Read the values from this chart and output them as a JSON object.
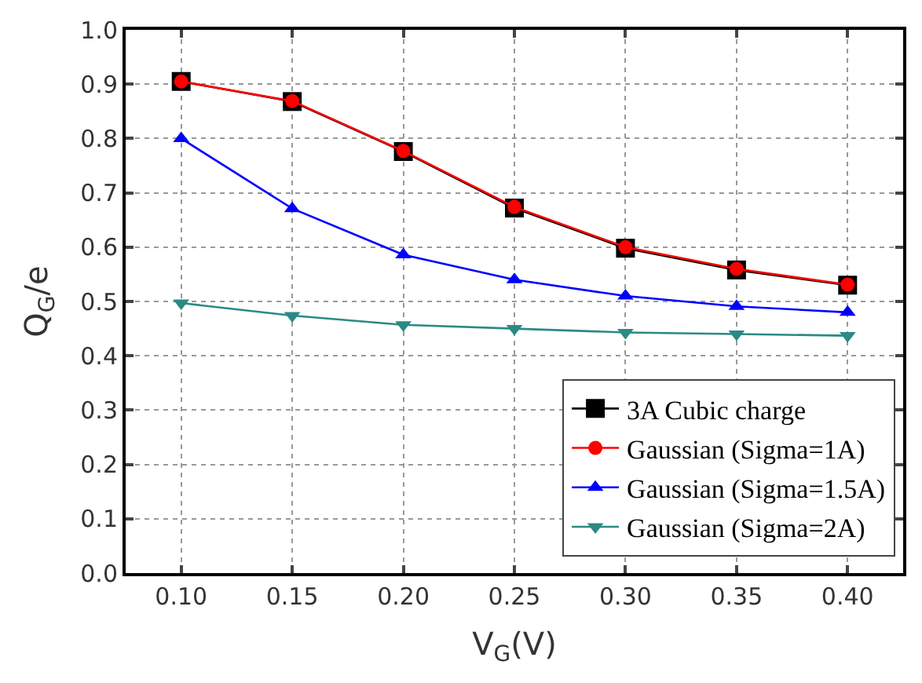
{
  "chart_data": {
    "type": "line",
    "xlabel": "V$_{G}$(V)",
    "ylabel": "Q$_{G}$/e",
    "x": [
      0.1,
      0.15,
      0.2,
      0.25,
      0.3,
      0.35,
      0.4
    ],
    "series": [
      {
        "name": "3A Cubic charge",
        "color": "#000000",
        "marker": "square",
        "values": [
          0.905,
          0.868,
          0.776,
          0.672,
          0.598,
          0.558,
          0.53
        ]
      },
      {
        "name": "Gaussian (Sigma=1A)",
        "color": "#ff0000",
        "marker": "circle",
        "values": [
          0.905,
          0.869,
          0.777,
          0.674,
          0.6,
          0.56,
          0.531
        ]
      },
      {
        "name": "Gaussian (Sigma=1.5A)",
        "color": "#0000ff",
        "marker": "triangle",
        "values": [
          0.8,
          0.671,
          0.586,
          0.54,
          0.51,
          0.491,
          0.48
        ]
      },
      {
        "name": "Gaussian (Sigma=2A)",
        "color": "#2a8a84",
        "marker": "triangle-down",
        "values": [
          0.497,
          0.474,
          0.457,
          0.45,
          0.443,
          0.44,
          0.437
        ]
      }
    ],
    "xlim": [
      0.075,
      0.425
    ],
    "xticks": [
      {
        "value": 0.1,
        "label": "0.10"
      },
      0.15,
      {
        "value": 0.2,
        "label": "0.20"
      },
      0.25,
      {
        "value": 0.3,
        "label": "0.30"
      },
      0.35,
      {
        "value": 0.4,
        "label": "0.40"
      }
    ],
    "ylim": [
      0,
      1.0
    ],
    "yticks": [
      {
        "value": 0,
        "label": "0.0"
      },
      0.1,
      0.2,
      0.3,
      0.4,
      0.5,
      0.6,
      0.7,
      0.8,
      0.9,
      {
        "value": 1.0,
        "label": "1.0"
      }
    ],
    "grid": true,
    "legend": "bottom right",
    "line_style": "solid"
  }
}
